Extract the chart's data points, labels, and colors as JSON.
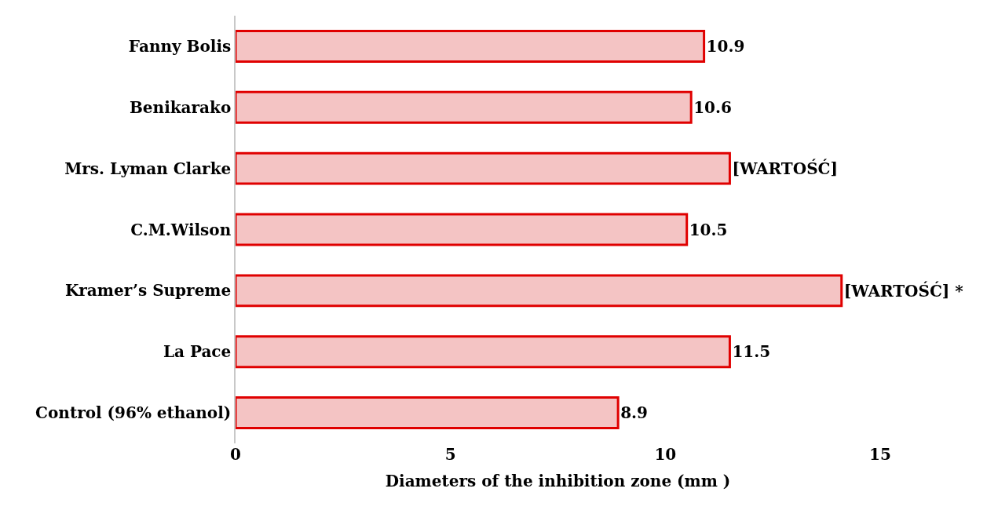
{
  "chart_data": {
    "type": "bar",
    "orientation": "horizontal",
    "xlabel": "Diameters of the inhibition zone (mm )",
    "categories": [
      "Fanny Bolis",
      "Benikarako",
      "Mrs. Lyman Clarke",
      "C.M.Wilson",
      "Kramer’s Supreme",
      "La Pace",
      "Control (96% ethanol)"
    ],
    "values": [
      10.9,
      10.6,
      11.5,
      10.5,
      14.1,
      11.5,
      8.9
    ],
    "value_labels": [
      "10.9",
      "10.6",
      "[WARTOŚĆ]",
      "10.5",
      "[WARTOŚĆ] *",
      "11.5",
      "8.9"
    ],
    "color": "#f4c4c4",
    "xlim": [
      0,
      15
    ],
    "xticks": [
      0,
      5,
      10,
      15
    ],
    "grid": false
  }
}
